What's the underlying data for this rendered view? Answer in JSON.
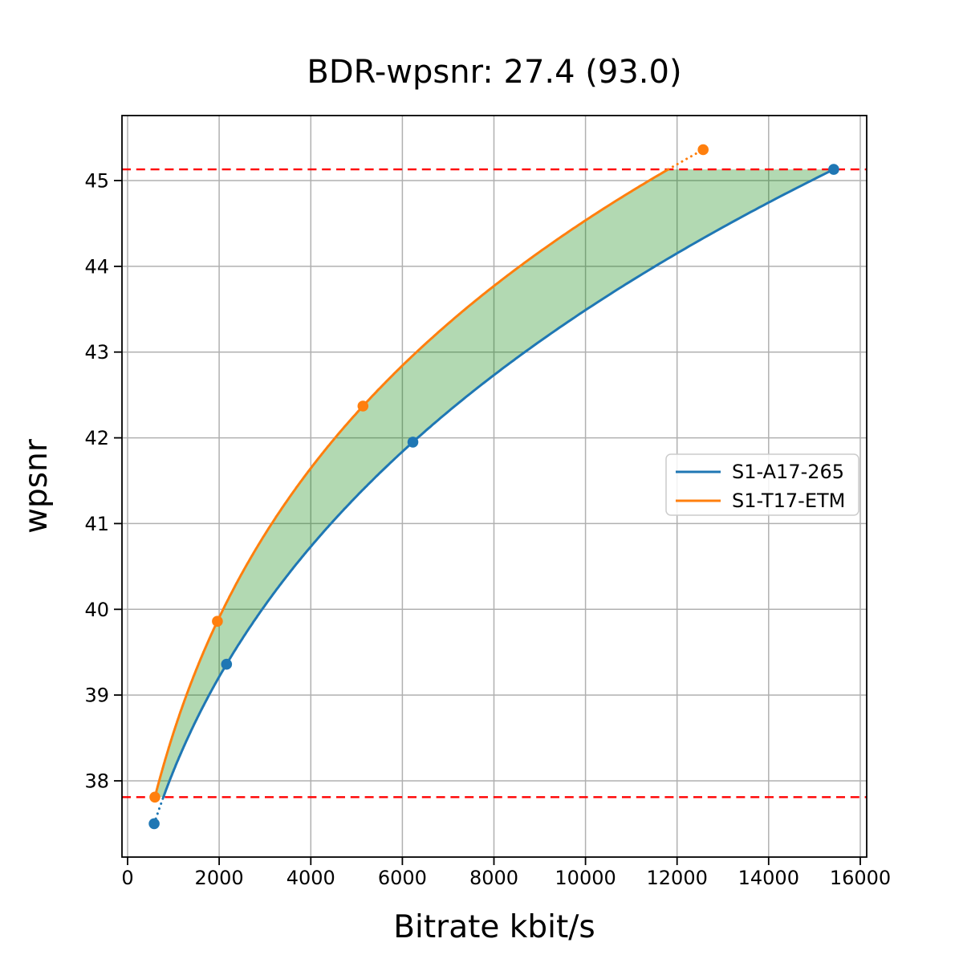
{
  "figure": {
    "background": "#ffffff"
  },
  "chart_data": {
    "type": "line",
    "title": "BDR-wpsnr: 27.4 (93.0)",
    "xlabel": "Bitrate kbit/s",
    "ylabel": "wpsnr",
    "xlim": [
      -123,
      16141
    ],
    "ylim": [
      37.111,
      45.758
    ],
    "x_ticks": [
      0,
      2000,
      4000,
      6000,
      8000,
      10000,
      12000,
      14000,
      16000
    ],
    "y_ticks": [
      38,
      39,
      40,
      41,
      42,
      43,
      44,
      45
    ],
    "grid": true,
    "grid_color": "#b0b0b0",
    "interpolation": "cubic-log10",
    "series": [
      {
        "name": "S1-A17-265",
        "color": "#1f77b4",
        "points": [
          [
            580,
            37.5
          ],
          [
            2160,
            39.36
          ],
          [
            6230,
            41.95
          ],
          [
            15420,
            45.13
          ]
        ]
      },
      {
        "name": "S1-T17-ETM",
        "color": "#ff7f0e",
        "points": [
          [
            595,
            37.81
          ],
          [
            1960,
            39.86
          ],
          [
            5140,
            42.37
          ],
          [
            12570,
            45.36
          ]
        ]
      }
    ],
    "reference_lines": {
      "color": "#ff0000",
      "style": "dashed",
      "values": [
        37.81,
        45.13
      ]
    },
    "fill_between": {
      "color": "rgba(0,128,0,0.3)"
    },
    "legend": {
      "position": "center right",
      "entries": [
        "S1-A17-265",
        "S1-T17-ETM"
      ]
    }
  }
}
